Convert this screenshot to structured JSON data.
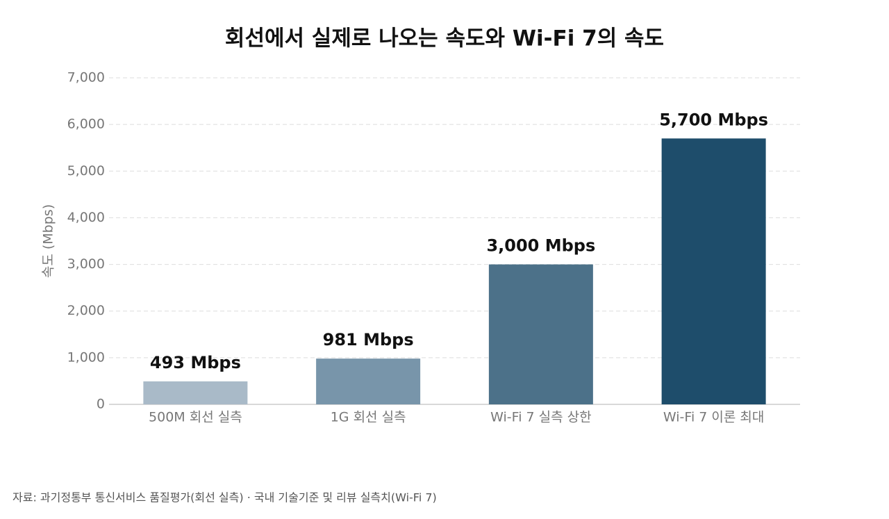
{
  "chart_data": {
    "type": "bar",
    "title": "회선에서 실제로 나오는 속도와 Wi-Fi 7의 속도",
    "y_label": "속도 (Mbps)",
    "categories": [
      "500M 회선 실측",
      "1G 회선 실측",
      "Wi-Fi 7 실측 상한",
      "Wi-Fi 7 이론 최대"
    ],
    "values": [
      493,
      981,
      3000,
      5700
    ],
    "value_labels": [
      "493 Mbps",
      "981 Mbps",
      "3,000 Mbps",
      "5,700 Mbps"
    ],
    "colors": [
      "#a9bac8",
      "#7895aa",
      "#4c7189",
      "#1e4d6b"
    ],
    "ylim": [
      0,
      7000
    ],
    "yticks": [
      0,
      {
        "value": 1000,
        "label": "1,000"
      },
      {
        "value": 2000,
        "label": "2,000"
      },
      {
        "value": 3000,
        "label": "3,000"
      },
      {
        "value": 4000,
        "label": "4,000"
      },
      {
        "value": 5000,
        "label": "5,000"
      },
      {
        "value": 6000,
        "label": "6,000"
      },
      {
        "value": 7000,
        "label": "7,000"
      }
    ],
    "grid": true,
    "source": "자료: 과기정통부 통신서비스 품질평가(회선 실측) · 국내 기술기준 및 리뷰 실측치(Wi-Fi 7)"
  }
}
